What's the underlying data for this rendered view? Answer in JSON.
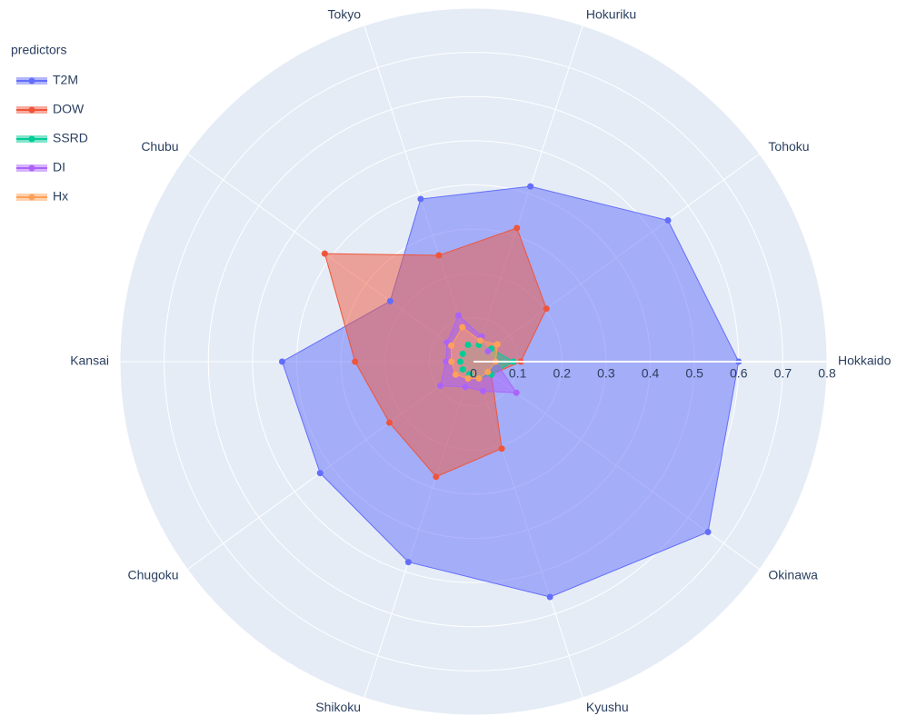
{
  "chart_data": {
    "type": "radar",
    "categories": [
      "Hokkaido",
      "Tohoku",
      "Hokuriku",
      "Tokyo",
      "Chubu",
      "Kansai",
      "Chugoku",
      "Shikoku",
      "Kyushu",
      "Okinawa"
    ],
    "legend_title": "predictors",
    "series": [
      {
        "name": "T2M",
        "color": "#636efa",
        "values": [
          0.6,
          0.544,
          0.417,
          0.387,
          0.233,
          0.433,
          0.429,
          0.477,
          0.56,
          0.656
        ]
      },
      {
        "name": "DOW",
        "color": "#ef553b",
        "values": [
          0.107,
          0.204,
          0.318,
          0.253,
          0.416,
          0.268,
          0.235,
          0.274,
          0.207,
          0.05
        ]
      },
      {
        "name": "SSRD",
        "color": "#00cc96",
        "values": [
          0.09,
          0.05,
          0.04,
          0.04,
          0.03,
          0.03,
          0.03,
          0.03,
          0.04,
          0.05
        ]
      },
      {
        "name": "DI",
        "color": "#ab63fa",
        "values": [
          0.05,
          0.04,
          0.06,
          0.11,
          0.074,
          0.062,
          0.093,
          0.06,
          0.07,
          0.12
        ]
      },
      {
        "name": "Hx",
        "color": "#ffa15a",
        "values": [
          0.05,
          0.067,
          0.05,
          0.082,
          0.062,
          0.05,
          0.05,
          0.04,
          0.04,
          0.04
        ]
      }
    ],
    "rlim": [
      0,
      0.8
    ],
    "rticks": [
      0,
      0.1,
      0.2,
      0.3,
      0.4,
      0.5,
      0.6,
      0.7,
      0.8
    ],
    "grid": true,
    "legend_position": "top-left"
  }
}
